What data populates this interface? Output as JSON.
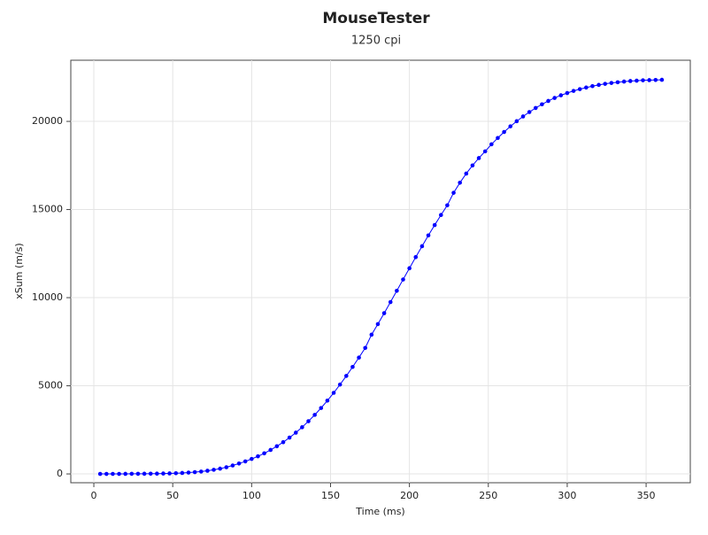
{
  "chart_data": {
    "type": "line",
    "title": "MouseTester",
    "subtitle": "1250 cpi",
    "x_label": "Time (ms)",
    "y_label": "xSum (m/s)",
    "xlim": [
      -14.6,
      378
    ],
    "ylim": [
      -500,
      23470
    ],
    "xticks": [
      0,
      50,
      100,
      150,
      200,
      250,
      300,
      350
    ],
    "yticks": [
      0,
      5000,
      10000,
      15000,
      20000
    ],
    "grid": true,
    "markers": true,
    "series": [
      {
        "color": "#0000ff",
        "x": [
          4,
          8,
          12,
          16,
          20,
          24,
          28,
          32,
          36,
          40,
          44,
          48,
          52,
          56,
          60,
          64,
          68,
          72,
          76,
          80,
          84,
          88,
          92,
          96,
          100,
          104,
          108,
          112,
          116,
          120,
          124,
          128,
          132,
          136,
          140,
          144,
          148,
          152,
          156,
          160,
          164,
          168,
          172,
          176,
          180,
          184,
          188,
          192,
          196,
          200,
          204,
          208,
          212,
          216,
          220,
          224,
          228,
          232,
          236,
          240,
          244,
          248,
          252,
          256,
          260,
          264,
          268,
          272,
          276,
          280,
          284,
          288,
          292,
          296,
          300,
          304,
          308,
          312,
          316,
          320,
          324,
          328,
          332,
          336,
          340,
          344,
          348,
          352,
          356,
          360
        ],
        "values": [
          0,
          0,
          2,
          3,
          5,
          6,
          8,
          10,
          13,
          17,
          22,
          30,
          40,
          55,
          75,
          100,
          135,
          180,
          235,
          300,
          380,
          480,
          590,
          710,
          850,
          1000,
          1170,
          1360,
          1570,
          1800,
          2060,
          2340,
          2650,
          2990,
          3350,
          3740,
          4160,
          4600,
          5070,
          5560,
          6070,
          6600,
          7150,
          7900,
          8500,
          9120,
          9750,
          10390,
          11030,
          11670,
          12300,
          12920,
          13530,
          14120,
          14690,
          15240,
          15950,
          16520,
          17040,
          17500,
          17920,
          18300,
          18700,
          19060,
          19400,
          19720,
          20010,
          20280,
          20530,
          20760,
          20970,
          21160,
          21330,
          21480,
          21610,
          21730,
          21830,
          21920,
          22000,
          22070,
          22130,
          22180,
          22220,
          22260,
          22290,
          22310,
          22330,
          22340,
          22350,
          22360
        ]
      }
    ]
  }
}
